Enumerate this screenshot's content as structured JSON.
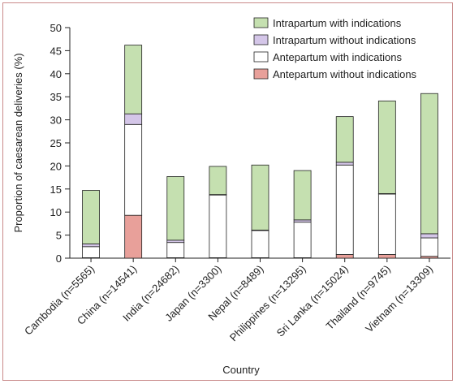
{
  "chart_data": {
    "type": "bar",
    "stacked": true,
    "xlabel": "Country",
    "ylabel": "Proportion of caesarean deliveries (%)",
    "ylim": [
      0,
      50
    ],
    "yticks": [
      0,
      5,
      10,
      15,
      20,
      25,
      30,
      35,
      40,
      45,
      50
    ],
    "grid": false,
    "legend_position": "top-right",
    "categories": [
      "Cambodia (n=5565)",
      "China (n=14541)",
      "India (n=24682)",
      "Japan (n=3300)",
      "Nepal (n=8489)",
      "Philippines (n=13295)",
      "Sri Lanka (n=15024)",
      "Thailand (n=9745)",
      "Vietnam (n=13309)"
    ],
    "series": [
      {
        "name": "Antepartum without indications",
        "color": "#e8a09a",
        "values": [
          0.1,
          9.3,
          0.1,
          0.1,
          0.1,
          0.1,
          0.8,
          0.8,
          0.4
        ]
      },
      {
        "name": "Antepartum with indications",
        "color": "#ffffff",
        "values": [
          2.4,
          19.7,
          3.3,
          13.6,
          5.9,
          7.7,
          19.4,
          13.1,
          4.0
        ]
      },
      {
        "name": "Intrapartum without indications",
        "color": "#d4c6e8",
        "values": [
          0.6,
          2.3,
          0.5,
          0.1,
          0.1,
          0.5,
          0.6,
          0.1,
          0.9
        ]
      },
      {
        "name": "Intrapartum with indications",
        "color": "#c5e0b0",
        "values": [
          11.6,
          14.9,
          13.8,
          6.1,
          14.1,
          10.7,
          9.9,
          20.1,
          30.4
        ]
      }
    ],
    "legend_order": [
      "Intrapartum with indications",
      "Intrapartum without indications",
      "Antepartum with indications",
      "Antepartum without indications"
    ]
  }
}
